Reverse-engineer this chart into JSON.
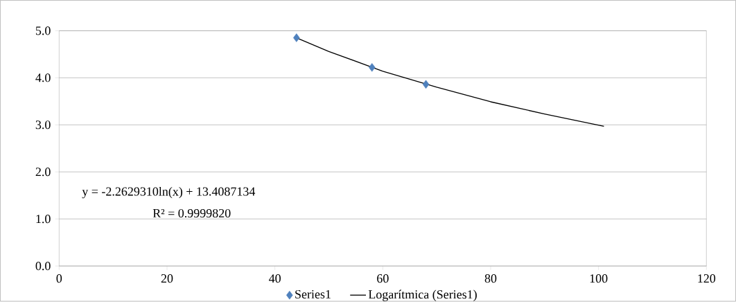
{
  "chart_data": {
    "type": "scatter",
    "xlim": [
      0,
      120
    ],
    "ylim": [
      0,
      5
    ],
    "xticks": [
      0,
      20,
      40,
      60,
      80,
      100,
      120
    ],
    "yticks": [
      {
        "value": 0,
        "label": "0.0"
      },
      {
        "value": 1,
        "label": "1.0"
      },
      {
        "value": 2,
        "label": "2.0"
      },
      {
        "value": 3,
        "label": "3.0"
      },
      {
        "value": 4,
        "label": "4.0"
      },
      {
        "value": 5,
        "label": "5.0"
      }
    ],
    "grid": "y",
    "legend": "bottom",
    "series": [
      {
        "name": "Series1",
        "marker": "diamond",
        "color": "#4f81bd",
        "x": [
          44,
          58,
          68
        ],
        "values": [
          4.85,
          4.22,
          3.86
        ]
      },
      {
        "name": "Logarítmica (Series1)",
        "type": "line",
        "marker": "none",
        "line_style": "solid",
        "color": "#000000",
        "x": [
          44,
          50,
          60,
          70,
          80,
          90,
          101
        ],
        "values": [
          4.85,
          4.56,
          4.14,
          3.8,
          3.49,
          3.23,
          2.97
        ]
      }
    ],
    "annotations": [
      "y = -2.2629310ln(x) + 13.4087134",
      "R² = 0.9999820"
    ]
  }
}
